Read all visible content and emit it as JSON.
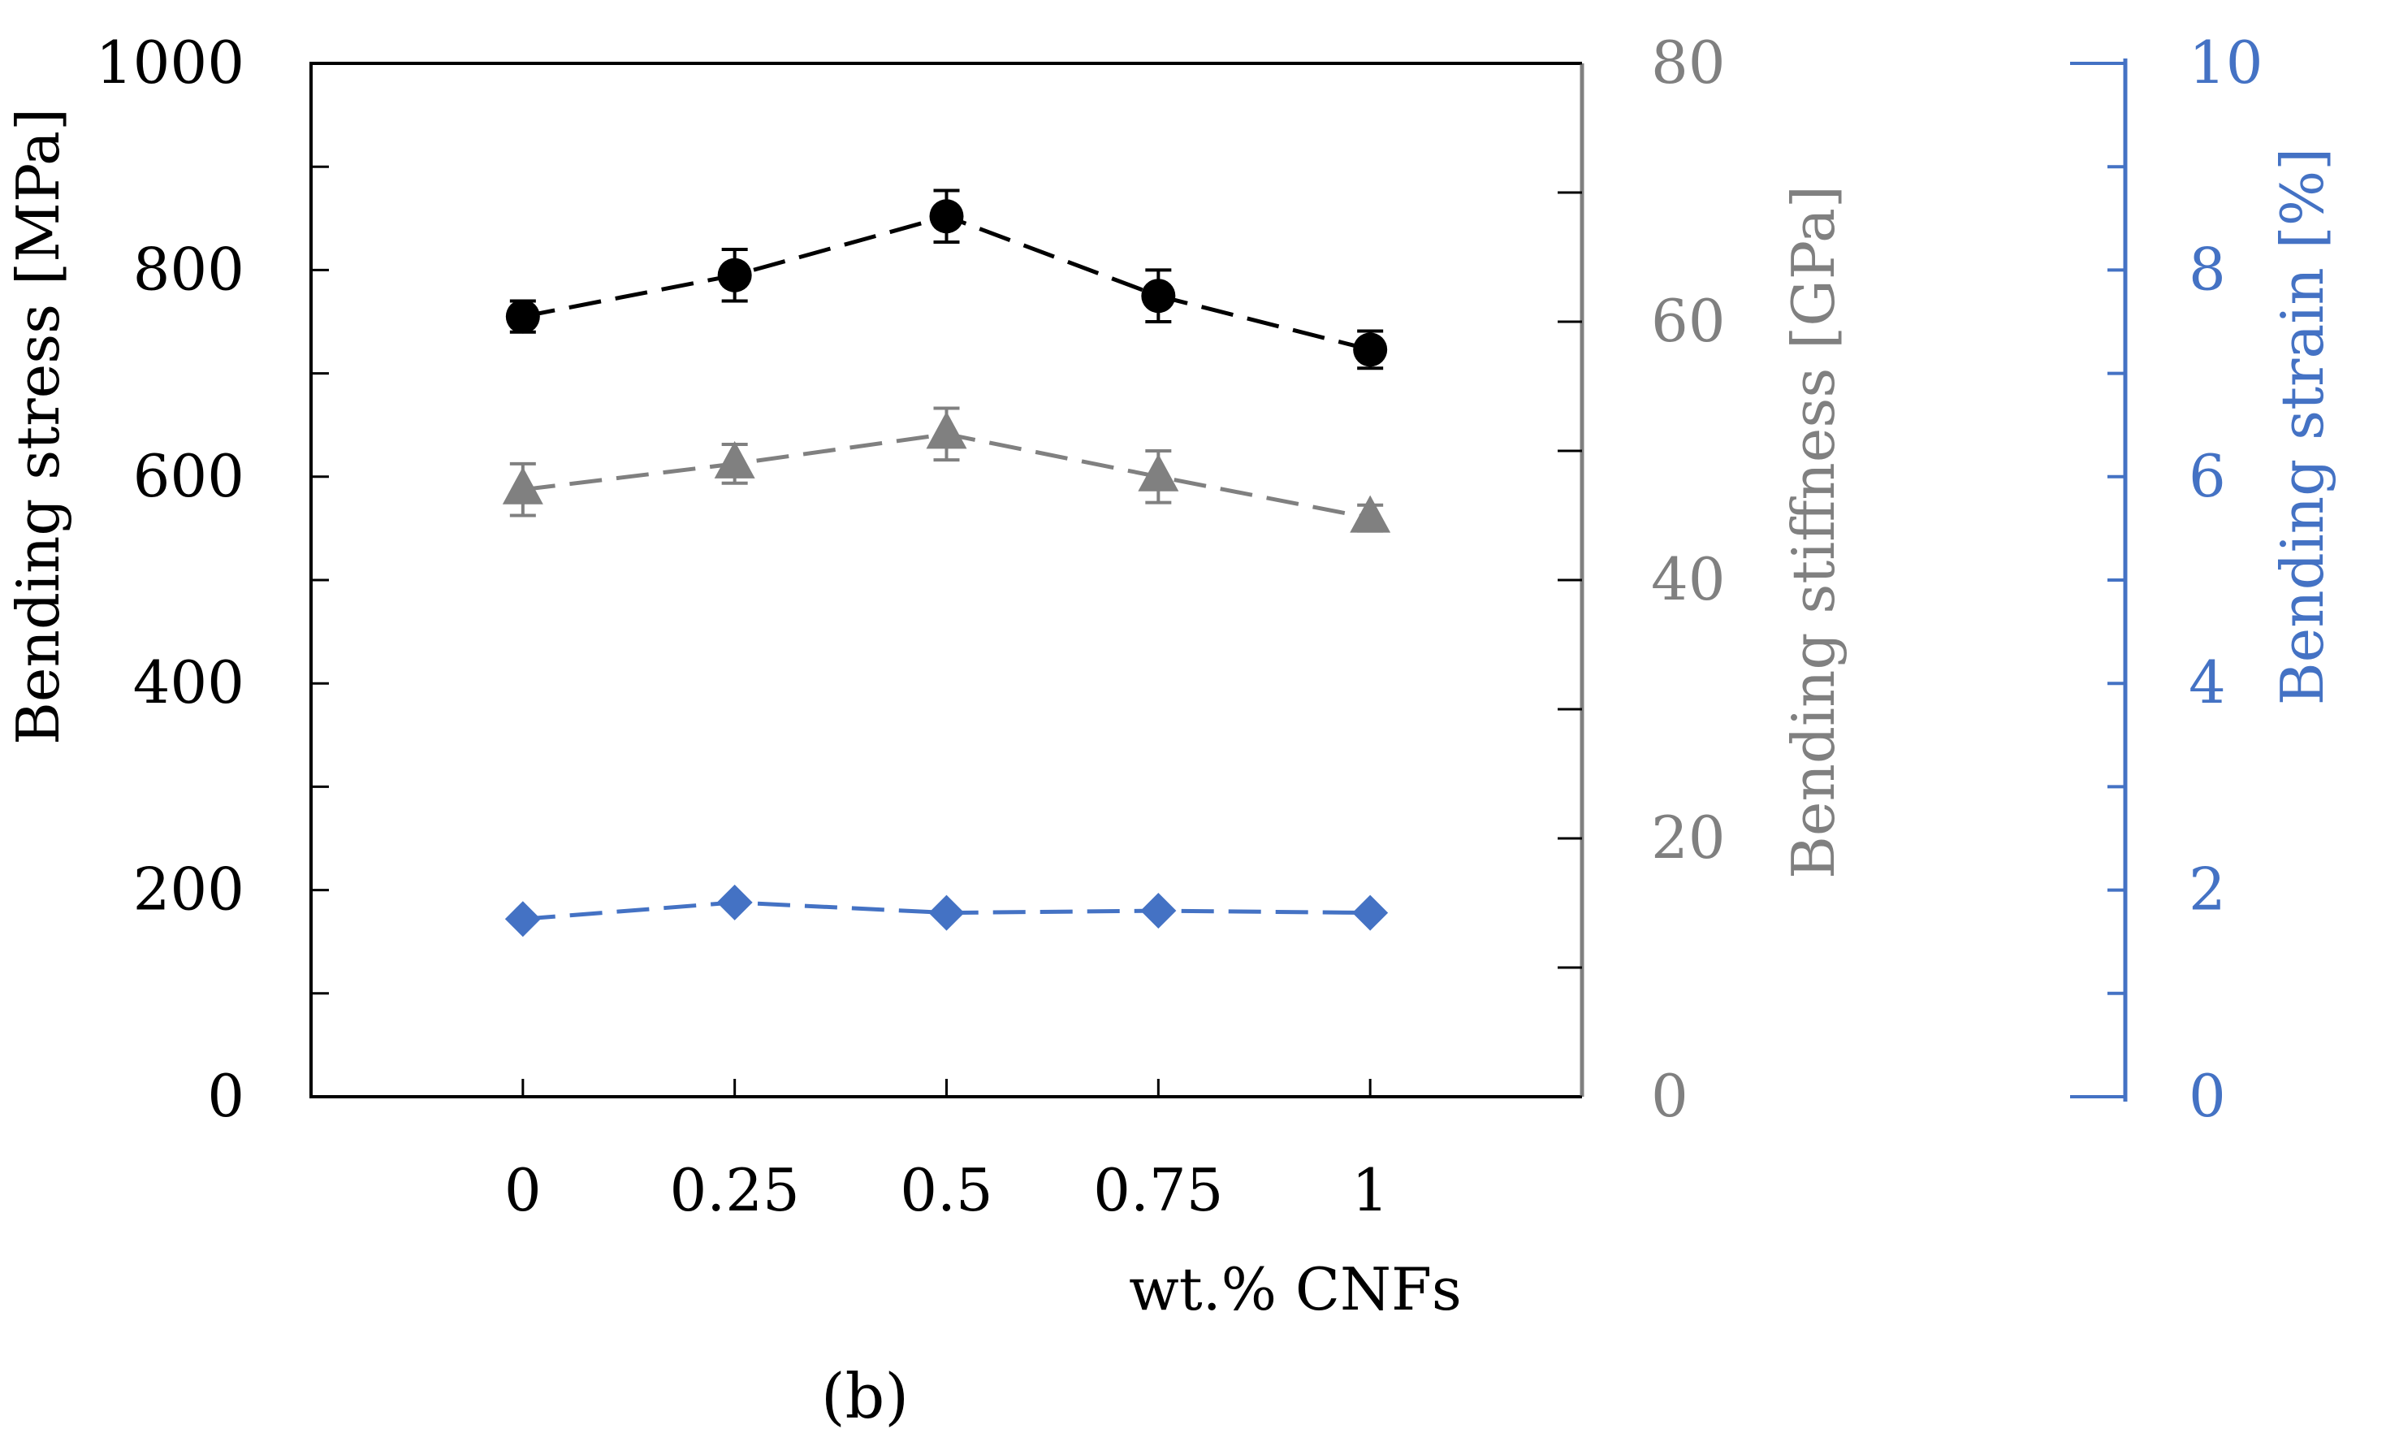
{
  "chart_data": {
    "type": "line",
    "x": [
      0,
      0.25,
      0.5,
      0.75,
      1
    ],
    "x_tick_labels": [
      "0",
      "0.25",
      "0.5",
      "0.75",
      "1"
    ],
    "xlabel": "wt.% CNFs",
    "xlim": [
      -0.25,
      1.25
    ],
    "panel_label": "(b)",
    "panel_label_letter": "b",
    "axes": {
      "left": {
        "label": "Bending stress [MPa]",
        "lim": [
          0,
          1000
        ],
        "ticks": [
          "0",
          "200",
          "400",
          "600",
          "800",
          "1000"
        ],
        "color": "#000000"
      },
      "right1": {
        "label": "Bending stiffness [GPa]",
        "lim": [
          0,
          80
        ],
        "ticks": [
          "0",
          "20",
          "40",
          "60",
          "80"
        ],
        "color": "#808080"
      },
      "right2": {
        "label": "Bending strain [%]",
        "lim": [
          0,
          10
        ],
        "ticks": [
          "0",
          "2",
          "4",
          "6",
          "8",
          "10"
        ],
        "color": "#4472C4"
      }
    },
    "series": [
      {
        "name": "Bending stress",
        "axis": "left",
        "marker": "circle",
        "color": "#000000",
        "values": [
          755,
          795,
          852,
          775,
          723
        ],
        "errors": [
          15,
          25,
          25,
          25,
          18
        ]
      },
      {
        "name": "Bending stiffness",
        "axis": "right1",
        "marker": "triangle",
        "color": "#808080",
        "values": [
          47,
          49,
          51.3,
          48,
          44.8
        ],
        "errors": [
          2,
          1.5,
          2,
          2,
          1
        ]
      },
      {
        "name": "Bending strain",
        "axis": "right2",
        "marker": "diamond",
        "color": "#4472C4",
        "values": [
          1.72,
          1.88,
          1.78,
          1.8,
          1.78
        ],
        "errors": [
          0,
          0,
          0,
          0,
          0
        ]
      }
    ]
  }
}
